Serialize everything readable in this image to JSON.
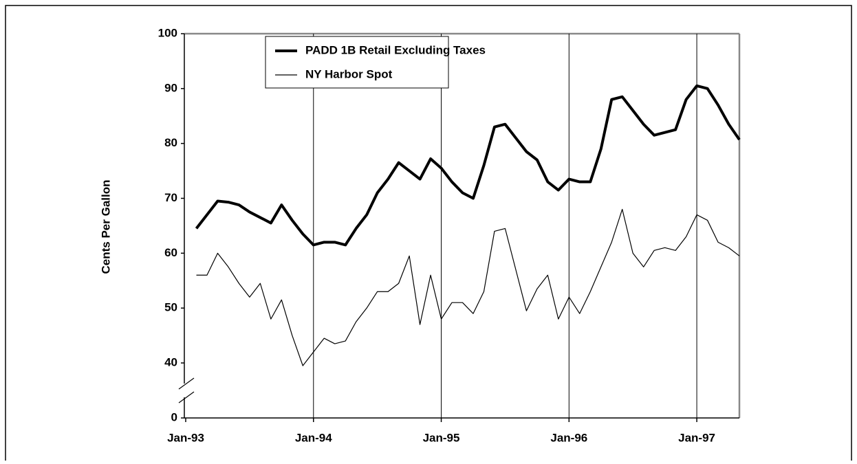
{
  "chart_data": {
    "type": "line",
    "y_label": "Cents Per Gallon",
    "x": [
      "1993-02",
      "1993-03",
      "1993-04",
      "1993-05",
      "1993-06",
      "1993-07",
      "1993-08",
      "1993-09",
      "1993-10",
      "1993-11",
      "1993-12",
      "1994-01",
      "1994-02",
      "1994-03",
      "1994-04",
      "1994-05",
      "1994-06",
      "1994-07",
      "1994-08",
      "1994-09",
      "1994-10",
      "1994-11",
      "1994-12",
      "1995-01",
      "1995-02",
      "1995-03",
      "1995-04",
      "1995-05",
      "1995-06",
      "1995-07",
      "1995-08",
      "1995-09",
      "1995-10",
      "1995-11",
      "1995-12",
      "1996-01",
      "1996-02",
      "1996-03",
      "1996-04",
      "1996-05",
      "1996-06",
      "1996-07",
      "1996-08",
      "1996-09",
      "1996-10",
      "1996-11",
      "1996-12",
      "1997-01",
      "1997-02",
      "1997-03",
      "1997-04",
      "1997-05"
    ],
    "series": [
      {
        "name": "PADD 1B Retail Excluding Taxes",
        "color": "#000000",
        "width": 4,
        "values": [
          64.5,
          67,
          69.5,
          69.3,
          68.8,
          67.5,
          66.5,
          65.5,
          68.8,
          66,
          63.5,
          61.5,
          62,
          62,
          61.5,
          64.5,
          67,
          71,
          73.5,
          76.5,
          75,
          73.5,
          77.2,
          75.5,
          73,
          71,
          70,
          76,
          83,
          83.5,
          81,
          78.5,
          77,
          73,
          71.5,
          73.5,
          73,
          73,
          79,
          88,
          88.5,
          86,
          83.5,
          81.5,
          82,
          82.5,
          88,
          90.5,
          90,
          87,
          83.5,
          80.7
        ]
      },
      {
        "name": "NY Harbor Spot",
        "color": "#000000",
        "width": 1.2,
        "values": [
          56,
          56,
          60,
          57.5,
          54.5,
          52,
          54.5,
          48,
          51.5,
          45,
          38,
          42,
          44.5,
          43.5,
          44,
          47.5,
          50,
          53,
          53,
          54.5,
          59.5,
          47,
          56,
          48,
          51,
          51,
          49,
          53,
          64,
          64.5,
          57,
          49.5,
          53.5,
          56,
          48,
          52,
          49,
          53,
          57.5,
          62,
          68,
          60,
          57.5,
          60.5,
          61,
          60.5,
          63,
          67,
          66,
          62,
          61,
          59.5
        ]
      }
    ],
    "xlim": [
      "1993-01",
      "1997-05"
    ],
    "xticks": [
      {
        "value": "1993-01",
        "label": "Jan-93"
      },
      {
        "value": "1994-01",
        "label": "Jan-94"
      },
      {
        "value": "1995-01",
        "label": "Jan-95"
      },
      {
        "value": "1996-01",
        "label": "Jan-96"
      },
      {
        "value": "1997-01",
        "label": "Jan-97"
      }
    ],
    "ylim": [
      0,
      100
    ],
    "axis_break": [
      0,
      40
    ],
    "yticks": [
      0,
      40,
      50,
      60,
      70,
      80,
      90,
      100
    ],
    "x_grid": true,
    "legend": "top"
  }
}
